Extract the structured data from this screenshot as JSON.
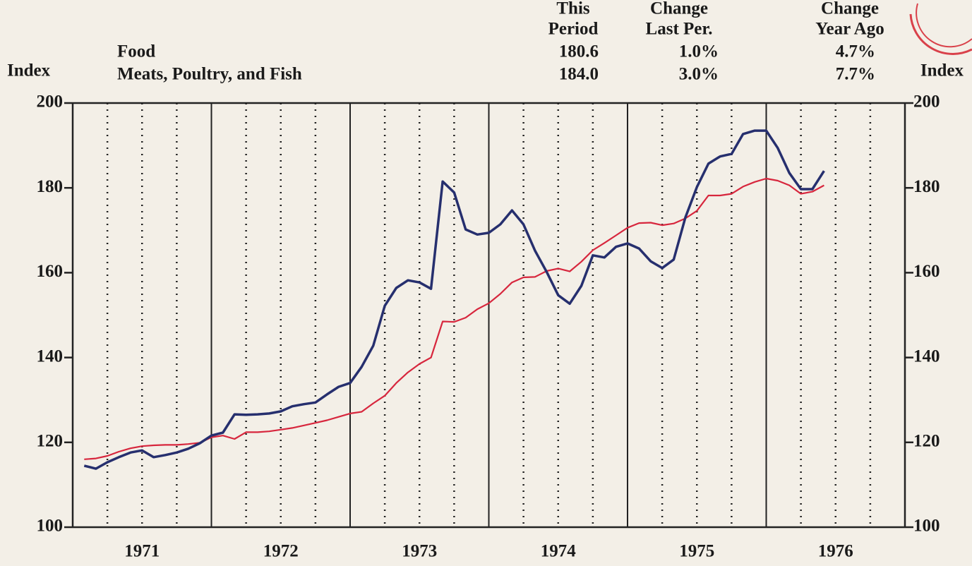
{
  "chart_data": {
    "type": "line",
    "y_axis_label": "Index",
    "y2_axis_label": "Index",
    "summary": {
      "columns": [
        [
          "This",
          "Period"
        ],
        [
          "Change",
          "Last Per."
        ],
        [
          "Change",
          "Year Ago"
        ]
      ],
      "rows": [
        [
          "180.6",
          "1.0%",
          "4.7%"
        ],
        [
          "184.0",
          "3.0%",
          "7.7%"
        ]
      ]
    },
    "xlim": [
      1971,
      1977
    ],
    "xticks": [
      {
        "value": 1971.5,
        "label": "1971"
      },
      {
        "value": 1972.5,
        "label": "1972"
      },
      {
        "value": 1973.5,
        "label": "1973"
      },
      {
        "value": 1974.5,
        "label": "1974"
      },
      {
        "value": 1975.5,
        "label": "1975"
      },
      {
        "value": 1976.5,
        "label": "1976"
      }
    ],
    "xgrid_major": [
      1972,
      1973,
      1974,
      1975,
      1976
    ],
    "xgrid_minor": [
      1971.25,
      1971.5,
      1971.75,
      1972.25,
      1972.5,
      1972.75,
      1973.25,
      1973.5,
      1973.75,
      1974.25,
      1974.5,
      1974.75,
      1975.25,
      1975.5,
      1975.75,
      1976.25,
      1976.5,
      1976.75
    ],
    "ylim": [
      100,
      200
    ],
    "yticks": [
      100,
      120,
      140,
      160,
      180,
      200
    ],
    "y2lim": [
      100,
      200
    ],
    "y2ticks": [
      100,
      120,
      140,
      160,
      180,
      200
    ],
    "x": [
      1971.083,
      1971.167,
      1971.25,
      1971.333,
      1971.417,
      1971.5,
      1971.583,
      1971.667,
      1971.75,
      1971.833,
      1971.917,
      1972.0,
      1972.083,
      1972.167,
      1972.25,
      1972.333,
      1972.417,
      1972.5,
      1972.583,
      1972.667,
      1972.75,
      1972.833,
      1972.917,
      1973.0,
      1973.083,
      1973.167,
      1973.25,
      1973.333,
      1973.417,
      1973.5,
      1973.583,
      1973.667,
      1973.75,
      1973.833,
      1973.917,
      1974.0,
      1974.083,
      1974.167,
      1974.25,
      1974.333,
      1974.417,
      1974.5,
      1974.583,
      1974.667,
      1974.75,
      1974.833,
      1974.917,
      1975.0,
      1975.083,
      1975.167,
      1975.25,
      1975.333,
      1975.417,
      1975.5,
      1975.583,
      1975.667,
      1975.75,
      1975.833,
      1975.917,
      1976.0,
      1976.083,
      1976.167,
      1976.25,
      1976.333,
      1976.417
    ],
    "series": [
      {
        "name": "Food",
        "color": "#d7263d",
        "values": [
          116,
          116.2,
          116.8,
          117.8,
          118.6,
          119.1,
          119.3,
          119.4,
          119.4,
          119.6,
          119.9,
          121.2,
          121.6,
          120.8,
          122.4,
          122.4,
          122.6,
          123,
          123.4,
          124,
          124.6,
          125.2,
          126,
          126.8,
          127.2,
          129.2,
          131,
          134,
          136.5,
          138.5,
          140,
          148.5,
          148.4,
          149.4,
          151.4,
          152.8,
          155,
          157.7,
          158.9,
          159,
          160.4,
          161,
          160.3,
          162.6,
          165.3,
          167,
          168.8,
          170.6,
          171.7,
          171.8,
          171.2,
          171.6,
          172.8,
          174.6,
          178.2,
          178.2,
          178.6,
          180.3,
          181.4,
          182.2,
          181.7,
          180.6,
          178.6,
          179.1,
          180.6
        ]
      },
      {
        "name": "Meats, Poultry, and Fish",
        "color": "#262f6e",
        "values": [
          114.5,
          113.8,
          115.3,
          116.5,
          117.6,
          118.1,
          116.5,
          117,
          117.6,
          118.5,
          119.8,
          121.6,
          122.3,
          126.6,
          126.5,
          126.6,
          126.8,
          127.3,
          128.5,
          129,
          129.4,
          131.3,
          133.1,
          134,
          137.8,
          142.8,
          152.2,
          156.4,
          158.2,
          157.7,
          156.2,
          181.5,
          178.9,
          170.2,
          169,
          169.4,
          171.4,
          174.7,
          171.4,
          165.2,
          160.2,
          154.7,
          152.7,
          156.9,
          164.1,
          163.6,
          166.1,
          166.9,
          165.7,
          162.7,
          161.1,
          163.1,
          173,
          180.2,
          185.7,
          187.4,
          188,
          192.7,
          193.5,
          193.5,
          189.4,
          183.5,
          179.7,
          179.7,
          184.0
        ]
      }
    ]
  }
}
